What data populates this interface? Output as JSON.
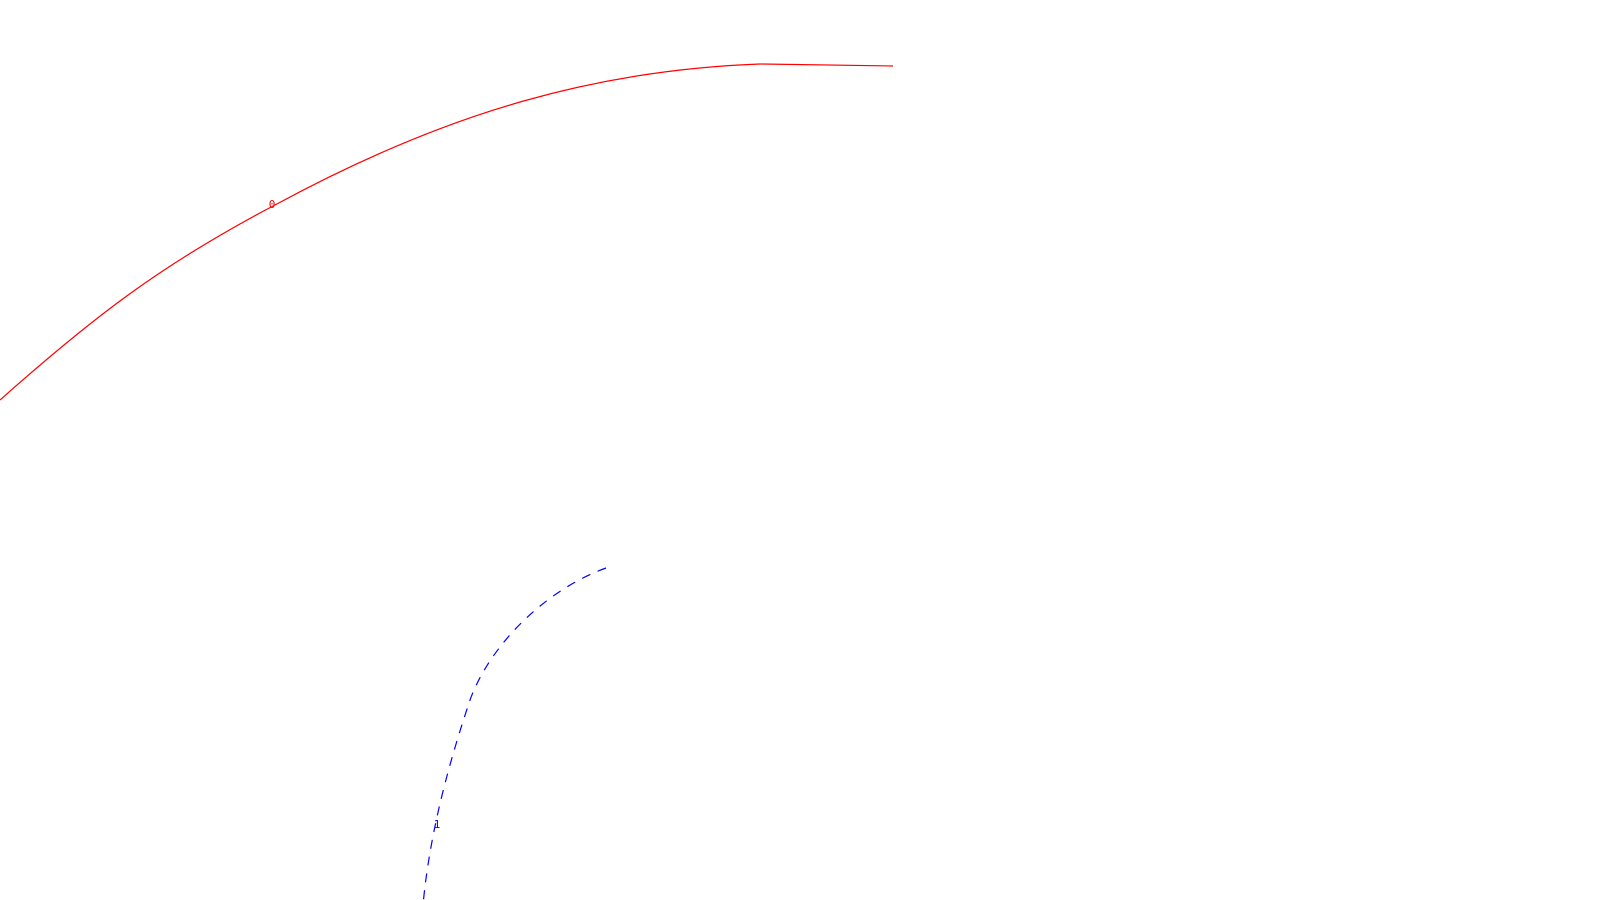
{
  "curves": [
    {
      "label": "0",
      "color": "#ff0000",
      "style": "solid"
    },
    {
      "label": "1",
      "color": "#0000ff",
      "style": "dashed"
    }
  ]
}
